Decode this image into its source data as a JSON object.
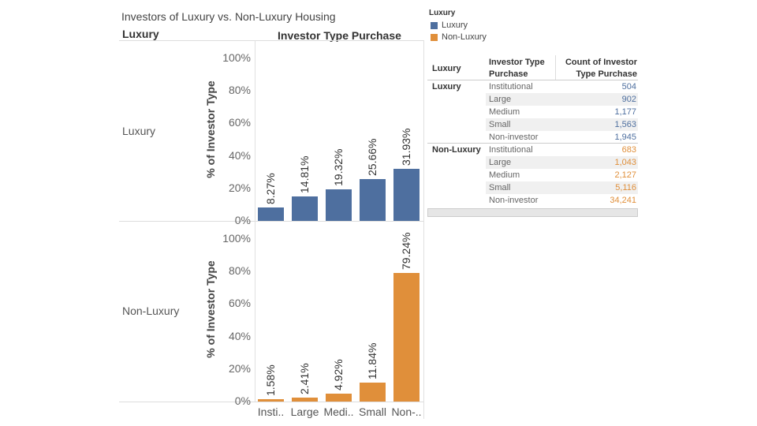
{
  "title": "Investors of Luxury vs. Non-Luxury Housing",
  "row_header": "Luxury",
  "column_header": "Investor Type Purchase",
  "colors": {
    "Luxury": "#4e6f9f",
    "Non-Luxury": "#e08f3a"
  },
  "legend": {
    "title": "Luxury",
    "items": [
      {
        "label": "Luxury",
        "color": "#4e6f9f"
      },
      {
        "label": "Non-Luxury",
        "color": "#e08f3a"
      }
    ]
  },
  "table": {
    "headers": [
      "Luxury",
      "Investor Type Purchase",
      "Count of Investor Type Purchase"
    ],
    "groups": [
      {
        "name": "Luxury",
        "rows": [
          {
            "type": "Institutional",
            "count": "504"
          },
          {
            "type": "Large",
            "count": "902"
          },
          {
            "type": "Medium",
            "count": "1,177"
          },
          {
            "type": "Small",
            "count": "1,563"
          },
          {
            "type": "Non-investor",
            "count": "1,945"
          }
        ]
      },
      {
        "name": "Non-Luxury",
        "rows": [
          {
            "type": "Institutional",
            "count": "683"
          },
          {
            "type": "Large",
            "count": "1,043"
          },
          {
            "type": "Medium",
            "count": "2,127"
          },
          {
            "type": "Small",
            "count": "5,116"
          },
          {
            "type": "Non-investor",
            "count": "34,241"
          }
        ]
      }
    ]
  },
  "chart_data": {
    "type": "bar",
    "title": "Investors of Luxury vs. Non-Luxury Housing",
    "xlabel": "Investor Type Purchase",
    "ylabel": "% of Investor Type",
    "categories": [
      "Insti..",
      "Large",
      "Medi..",
      "Small",
      "Non-.."
    ],
    "yticks": [
      "100%",
      "80%",
      "60%",
      "40%",
      "20%",
      "0%"
    ],
    "ylim": [
      0,
      100
    ],
    "grid": false,
    "panels": [
      {
        "name": "Luxury",
        "color": "#4e6f9f",
        "values": [
          8.27,
          14.81,
          19.32,
          25.66,
          31.93
        ],
        "labels": [
          "8.27%",
          "14.81%",
          "19.32%",
          "25.66%",
          "31.93%"
        ]
      },
      {
        "name": "Non-Luxury",
        "color": "#e08f3a",
        "values": [
          1.58,
          2.41,
          4.92,
          11.84,
          79.24
        ],
        "labels": [
          "1.58%",
          "2.41%",
          "4.92%",
          "11.84%",
          "79.24%"
        ]
      }
    ]
  }
}
